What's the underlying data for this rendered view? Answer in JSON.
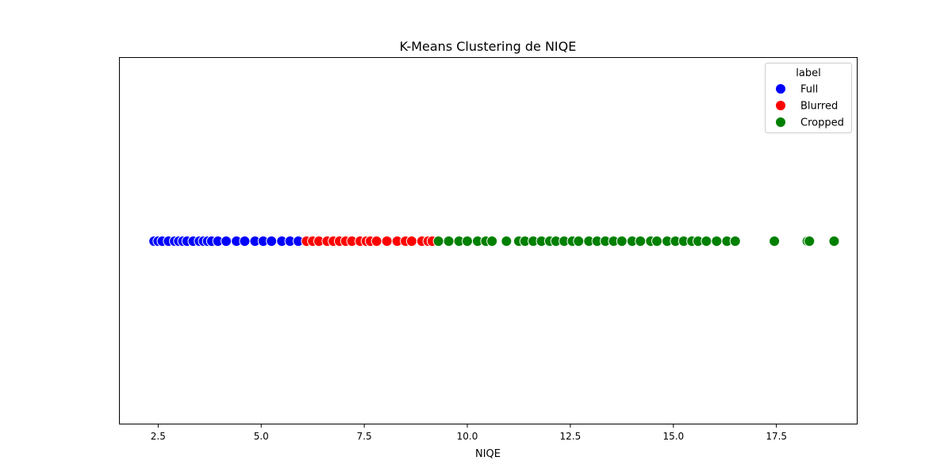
{
  "chart_data": {
    "type": "scatter",
    "title": "K-Means Clustering de NIQE",
    "xlabel": "NIQE",
    "ylabel": "",
    "xlim": [
      1.55,
      19.45
    ],
    "x_ticks": [
      {
        "value": 2.5,
        "label": "2.5"
      },
      {
        "value": 5.0,
        "label": "5.0"
      },
      {
        "value": 7.5,
        "label": "7.5"
      },
      {
        "value": 10.0,
        "label": "10.0"
      },
      {
        "value": 12.5,
        "label": "12.5"
      },
      {
        "value": 15.0,
        "label": "15.0"
      },
      {
        "value": 17.5,
        "label": "17.5"
      }
    ],
    "grid": false,
    "legend": {
      "title": "label",
      "placement": "top-right"
    },
    "series": [
      {
        "name": "Full",
        "color": "#0000ff",
        "x": [
          2.4,
          2.5,
          2.6,
          2.75,
          2.9,
          3.0,
          3.1,
          3.2,
          3.35,
          3.5,
          3.6,
          3.7,
          3.8,
          3.95,
          4.15,
          4.4,
          4.6,
          4.85,
          5.05,
          5.25,
          5.5,
          5.7,
          5.9
        ]
      },
      {
        "name": "Blurred",
        "color": "#ff0000",
        "x": [
          6.1,
          6.25,
          6.4,
          6.6,
          6.75,
          6.9,
          7.05,
          7.2,
          7.4,
          7.55,
          7.65,
          7.8,
          8.05,
          8.3,
          8.5,
          8.65,
          8.9,
          9.05,
          9.15
        ]
      },
      {
        "name": "Cropped",
        "color": "#008000",
        "x": [
          9.3,
          9.55,
          9.8,
          10.0,
          10.25,
          10.45,
          10.6,
          10.95,
          11.25,
          11.4,
          11.6,
          11.8,
          12.0,
          12.15,
          12.35,
          12.55,
          12.7,
          12.95,
          13.15,
          13.35,
          13.55,
          13.75,
          14.0,
          14.2,
          14.45,
          14.6,
          14.85,
          15.05,
          15.25,
          15.45,
          15.6,
          15.8,
          16.05,
          16.3,
          16.5,
          17.45,
          18.25,
          18.3,
          18.9
        ]
      }
    ]
  }
}
